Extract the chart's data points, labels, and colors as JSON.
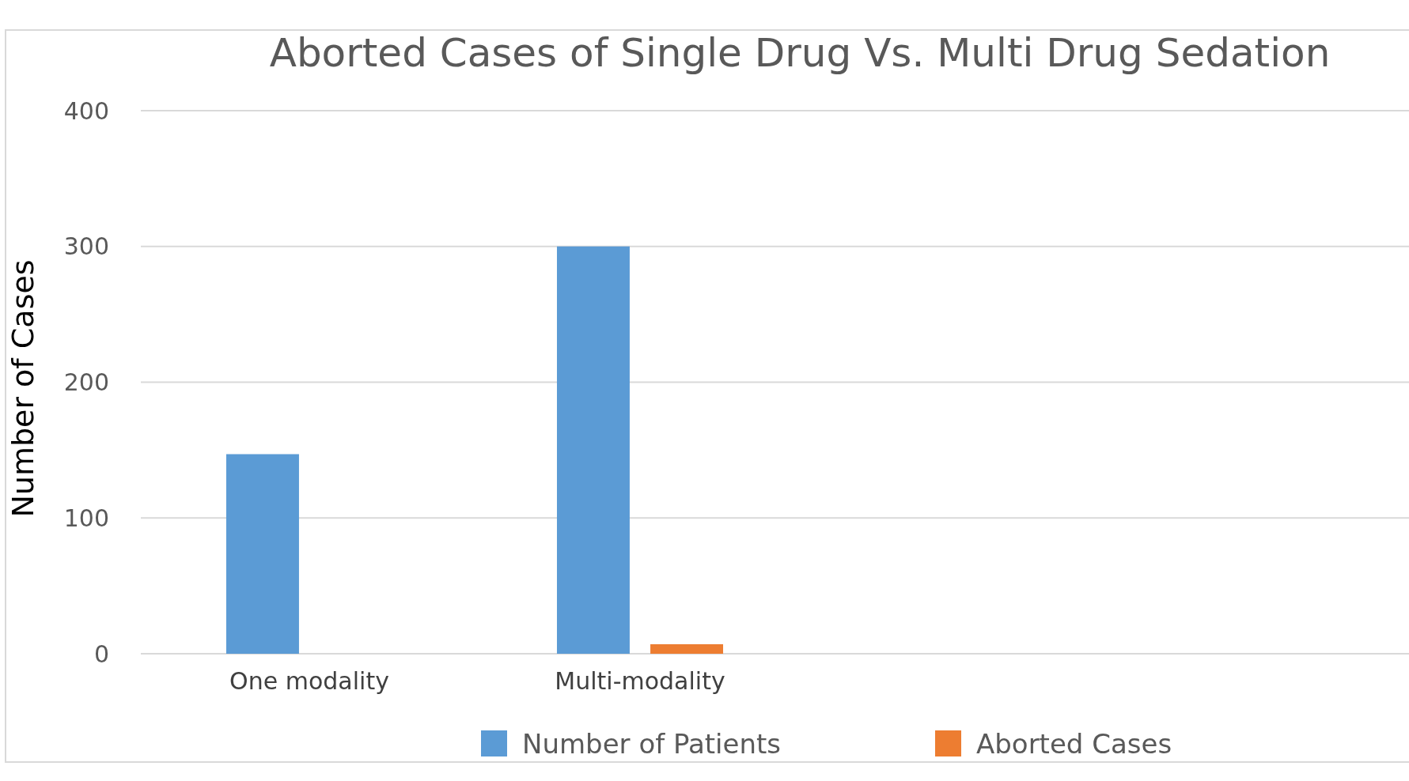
{
  "chart_data": {
    "type": "bar",
    "title": "Aborted Cases of Single Drug Vs. Multi Drug Sedation",
    "ylabel": "Number of Cases",
    "categories": [
      "One modality",
      "Multi-modality",
      null,
      null
    ],
    "series": [
      {
        "name": "Number of Patients",
        "color": "#5b9bd5",
        "values": [
          147,
          300,
          null,
          null
        ]
      },
      {
        "name": "Aborted Cases",
        "color": "#ed7d31",
        "values": [
          0,
          7,
          null,
          null
        ]
      }
    ],
    "ylim": [
      0,
      400
    ],
    "yticks": [
      0,
      100,
      200,
      300,
      400
    ],
    "grid": "y",
    "legend": "bottom"
  }
}
